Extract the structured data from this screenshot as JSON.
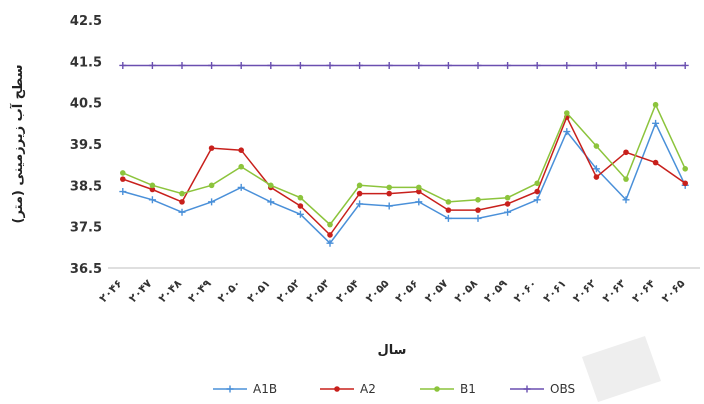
{
  "chart_data": {
    "type": "line",
    "xlabel": "سال",
    "ylabel": "سطح آب زیرزمینی (متر)",
    "ylim": [
      36.5,
      42.5
    ],
    "yticks": [
      "36.5",
      "37.5",
      "38.5",
      "39.5",
      "40.5",
      "41.5",
      "42.5"
    ],
    "grid": false,
    "legend_position": "bottom",
    "categories": [
      "۲۰۴۶",
      "۲۰۴۷",
      "۲۰۴۸",
      "۲۰۴۹",
      "۲۰۵۰",
      "۲۰۵۱",
      "۲۰۵۲",
      "۲۰۵۳",
      "۲۰۵۴",
      "۲۰۵۵",
      "۲۰۵۶",
      "۲۰۵۷",
      "۲۰۵۸",
      "۲۰۵۹",
      "۲۰۶۰",
      "۲۰۶۱",
      "۲۰۶۲",
      "۲۰۶۳",
      "۲۰۶۴",
      "۲۰۶۵"
    ],
    "series": [
      {
        "name": "A1B",
        "color": "#4a90d9",
        "marker": "plus",
        "values": [
          38.35,
          38.15,
          37.85,
          38.1,
          38.45,
          38.1,
          37.8,
          37.1,
          38.05,
          38.0,
          38.1,
          37.7,
          37.7,
          37.85,
          38.15,
          39.8,
          38.9,
          38.15,
          40.0,
          38.5
        ]
      },
      {
        "name": "A2",
        "color": "#c8201c",
        "marker": "circle",
        "values": [
          38.65,
          38.4,
          38.1,
          39.4,
          39.35,
          38.45,
          38.0,
          37.3,
          38.3,
          38.3,
          38.35,
          37.9,
          37.9,
          38.05,
          38.35,
          40.15,
          38.7,
          39.3,
          39.05,
          38.55
        ]
      },
      {
        "name": "B1",
        "color": "#8cc43c",
        "marker": "circle",
        "values": [
          38.8,
          38.5,
          38.3,
          38.5,
          38.95,
          38.5,
          38.2,
          37.55,
          38.5,
          38.45,
          38.45,
          38.1,
          38.15,
          38.2,
          38.55,
          40.25,
          39.45,
          38.65,
          40.45,
          38.9
        ]
      },
      {
        "name": "OBS",
        "color": "#6a4fb0",
        "marker": "plus",
        "values": [
          41.4,
          41.4,
          41.4,
          41.4,
          41.4,
          41.4,
          41.4,
          41.4,
          41.4,
          41.4,
          41.4,
          41.4,
          41.4,
          41.4,
          41.4,
          41.4,
          41.4,
          41.4,
          41.4,
          41.4
        ]
      }
    ]
  }
}
